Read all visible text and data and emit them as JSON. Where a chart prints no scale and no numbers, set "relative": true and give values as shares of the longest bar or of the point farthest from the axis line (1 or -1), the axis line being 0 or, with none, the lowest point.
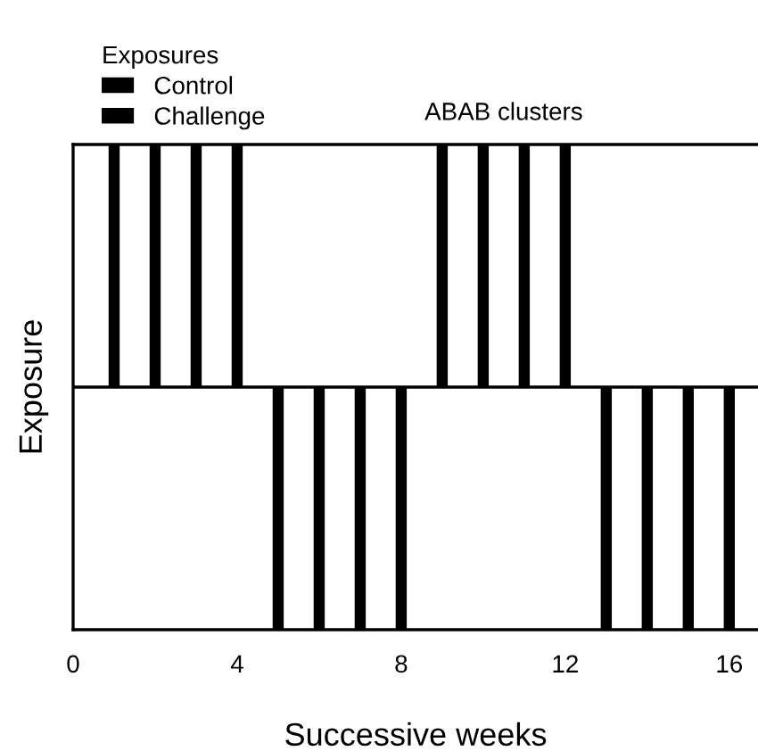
{
  "chart_data": {
    "type": "bar",
    "relative": true,
    "xlabel": "Successive weeks",
    "ylabel": "Exposure",
    "legend_title": "Exposures",
    "legend": "top left",
    "annotations": [
      "ABAB clusters"
    ],
    "x": [
      1,
      2,
      3,
      4,
      5,
      6,
      7,
      8,
      9,
      10,
      11,
      12,
      13,
      14,
      15,
      16
    ],
    "series": [
      {
        "name": "Control",
        "color": "#000000",
        "values": [
          1,
          1,
          1,
          1,
          null,
          null,
          null,
          null,
          1,
          1,
          1,
          1,
          null,
          null,
          null,
          null
        ]
      },
      {
        "name": "Challenge",
        "color": "#000000",
        "values": [
          null,
          null,
          null,
          null,
          -1,
          -1,
          -1,
          -1,
          null,
          null,
          null,
          null,
          -1,
          -1,
          -1,
          -1
        ]
      }
    ],
    "xlim": [
      0,
      16.7
    ],
    "xticks": [
      0,
      4,
      8,
      12,
      16
    ],
    "grid": false
  }
}
